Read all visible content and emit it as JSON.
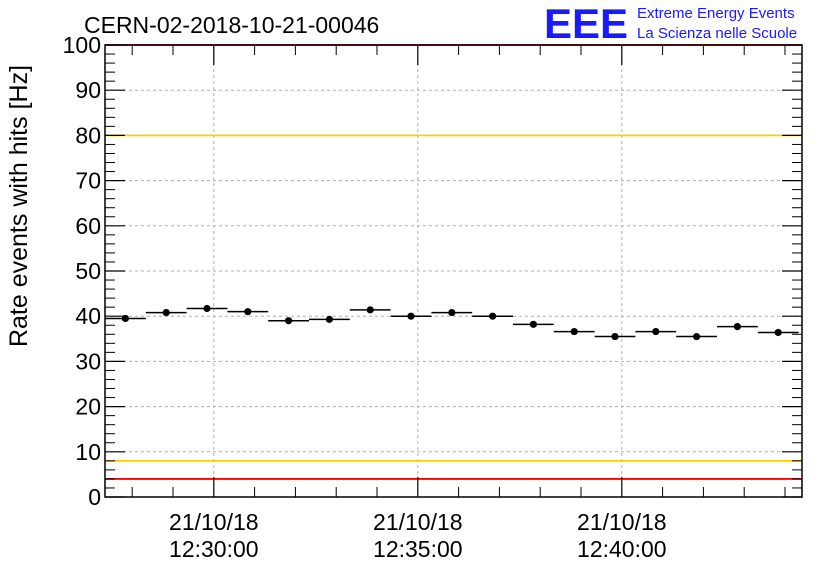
{
  "chart_data": {
    "type": "scatter",
    "title": "CERN-02-2018-10-21-00046",
    "ylabel": "Rate events with hits [Hz]",
    "xlabel": "",
    "ylim": [
      0,
      100
    ],
    "xlim": [
      "21/10/18 12:27:20",
      "21/10/18 12:44:25"
    ],
    "y_ticks": [
      0,
      10,
      20,
      30,
      40,
      50,
      60,
      70,
      80,
      90,
      100
    ],
    "x_ticks": [
      {
        "date": "21/10/18",
        "time": "12:30:00"
      },
      {
        "date": "21/10/18",
        "time": "12:35:00"
      },
      {
        "date": "21/10/18",
        "time": "12:40:00"
      }
    ],
    "grid": true,
    "reference_lines": [
      {
        "y": 100,
        "color": "#ff0000"
      },
      {
        "y": 80,
        "color": "#ffcc00"
      },
      {
        "y": 8,
        "color": "#ffcc00"
      },
      {
        "y": 4,
        "color": "#ff0000"
      }
    ],
    "series": [
      {
        "x": [
          "12:27:50",
          "12:28:50",
          "12:29:50",
          "12:30:50",
          "12:31:50",
          "12:32:50",
          "12:33:50",
          "12:34:50",
          "12:35:50",
          "12:36:50",
          "12:37:50",
          "12:38:50",
          "12:39:50",
          "12:40:50",
          "12:41:50",
          "12:42:50",
          "12:43:50"
        ],
        "y": [
          39.5,
          40.8,
          41.7,
          41.0,
          39.0,
          39.3,
          41.4,
          40.0,
          40.8,
          40.0,
          38.2,
          36.6,
          35.5,
          36.6,
          35.5,
          37.7,
          36.4
        ],
        "x_half_width_seconds": 30,
        "color": "#000000"
      }
    ]
  },
  "logo": {
    "text": "EEE",
    "line1": "Extreme Energy Events",
    "line2": "La Scienza nelle Scuole"
  }
}
